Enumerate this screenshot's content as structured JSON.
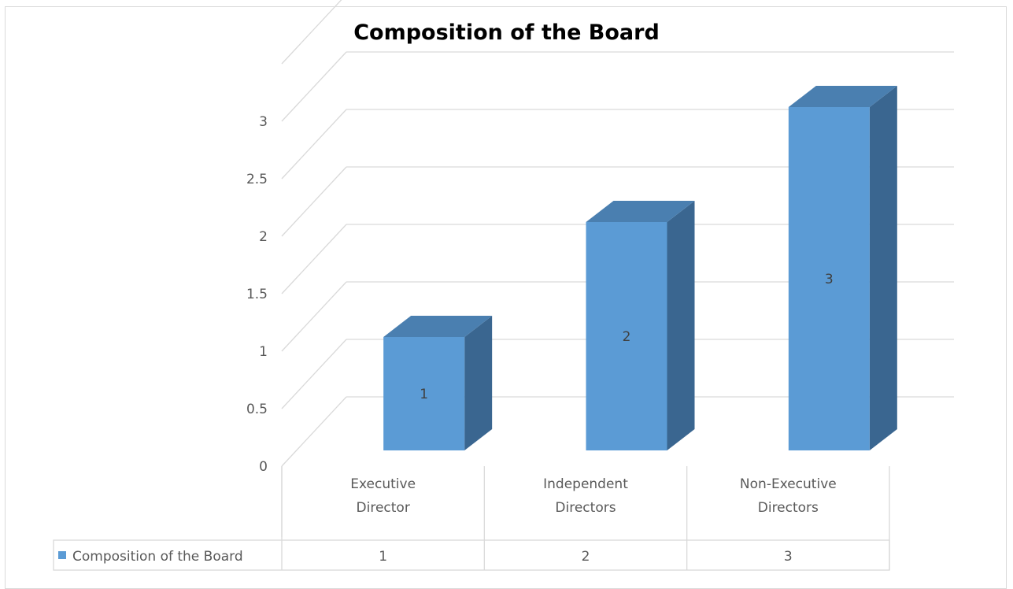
{
  "chart_data": {
    "type": "bar",
    "title": "Composition of the Board",
    "categories": [
      "Executive Director",
      "Independent Directors",
      "Non-Executive Directors"
    ],
    "series": [
      {
        "name": "Composition of the Board",
        "values": [
          1,
          2,
          3
        ]
      }
    ],
    "ylim": [
      0,
      3.5
    ],
    "y_ticks": [
      "0",
      "0.5",
      "1",
      "1.5",
      "2",
      "2.5",
      "3"
    ],
    "data_labels": [
      "1",
      "2",
      "3"
    ],
    "data_table_values": [
      "1",
      "2",
      "3"
    ],
    "grid": true,
    "legend": "data-table",
    "colors": {
      "bar_front": "#5b9bd5",
      "bar_top": "#4a7fb0",
      "bar_side": "#3a6690",
      "grid": "#d9d9d9",
      "text": "#595959"
    }
  }
}
